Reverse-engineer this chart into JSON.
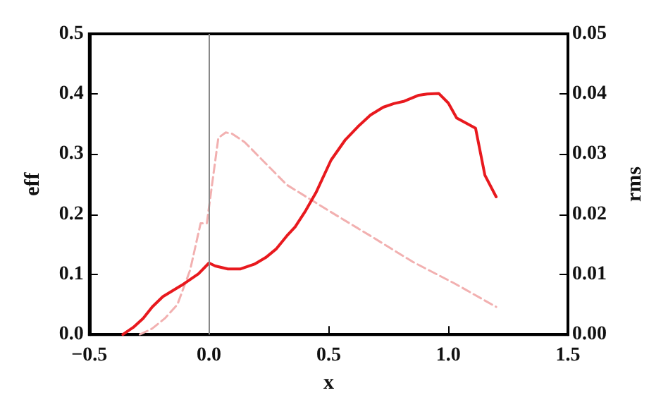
{
  "chart_data": {
    "type": "line",
    "xlabel": "x",
    "ylabel": "eff",
    "y2label": "rms",
    "xlim": [
      -0.5,
      1.5
    ],
    "xticks": [
      {
        "value": -0.5,
        "label": "−0.5"
      },
      {
        "value": 0,
        "label": "0.0"
      },
      {
        "value": 0.5,
        "label": "0.5"
      },
      {
        "value": 1,
        "label": "1.0"
      },
      {
        "value": 1.5,
        "label": "1.5"
      }
    ],
    "ylim": [
      0,
      0.5
    ],
    "yticks": [
      {
        "value": 0,
        "label": "0.0"
      },
      {
        "value": 0.1,
        "label": "0.1"
      },
      {
        "value": 0.2,
        "label": "0.2"
      },
      {
        "value": 0.3,
        "label": "0.3"
      },
      {
        "value": 0.4,
        "label": "0.4"
      },
      {
        "value": 0.5,
        "label": "0.5"
      }
    ],
    "y2lim": [
      0,
      0.05
    ],
    "y2ticks": [
      {
        "value": 0,
        "label": "0.00"
      },
      {
        "value": 0.01,
        "label": "0.01"
      },
      {
        "value": 0.02,
        "label": "0.02"
      },
      {
        "value": 0.03,
        "label": "0.03"
      },
      {
        "value": 0.04,
        "label": "0.04"
      },
      {
        "value": 0.05,
        "label": "0.05"
      }
    ],
    "grid": false,
    "marker": "none",
    "ref_lines": [
      {
        "axis": "x",
        "value": 0,
        "color": "#888888"
      }
    ],
    "series": [
      {
        "color": "#e8191e",
        "line_style": "solid",
        "x": [
          -0.36,
          -0.316,
          -0.275,
          -0.237,
          -0.193,
          -0.114,
          -0.044,
          0,
          0.026,
          0.079,
          0.13,
          0.19,
          0.237,
          0.28,
          0.325,
          0.36,
          0.404,
          0.447,
          0.51,
          0.57,
          0.623,
          0.675,
          0.728,
          0.772,
          0.816,
          0.877,
          0.912,
          0.96,
          1.0,
          1.035,
          1.114,
          1.153,
          1.2
        ],
        "values": [
          0,
          0.012,
          0.027,
          0.046,
          0.063,
          0.082,
          0.101,
          0.119,
          0.114,
          0.109,
          0.109,
          0.117,
          0.128,
          0.142,
          0.164,
          0.179,
          0.206,
          0.236,
          0.29,
          0.324,
          0.346,
          0.365,
          0.378,
          0.384,
          0.388,
          0.398,
          0.4,
          0.401,
          0.385,
          0.36,
          0.343,
          0.265,
          0.229
        ]
      },
      {
        "color": "#f2b0b0",
        "line_style": "dashed",
        "axis": "y2",
        "x": [
          -0.289,
          -0.237,
          -0.184,
          -0.132,
          -0.079,
          -0.035,
          -0.009,
          0.039,
          0.07,
          0.096,
          0.149,
          0.325,
          0.5,
          0.675,
          0.851,
          1.026,
          1.2
        ],
        "values": [
          0,
          0.001,
          0.0027,
          0.005,
          0.0107,
          0.0185,
          0.0185,
          0.0327,
          0.0336,
          0.0334,
          0.032,
          0.0249,
          0.0206,
          0.0164,
          0.0121,
          0.0085,
          0.0046
        ]
      }
    ]
  }
}
